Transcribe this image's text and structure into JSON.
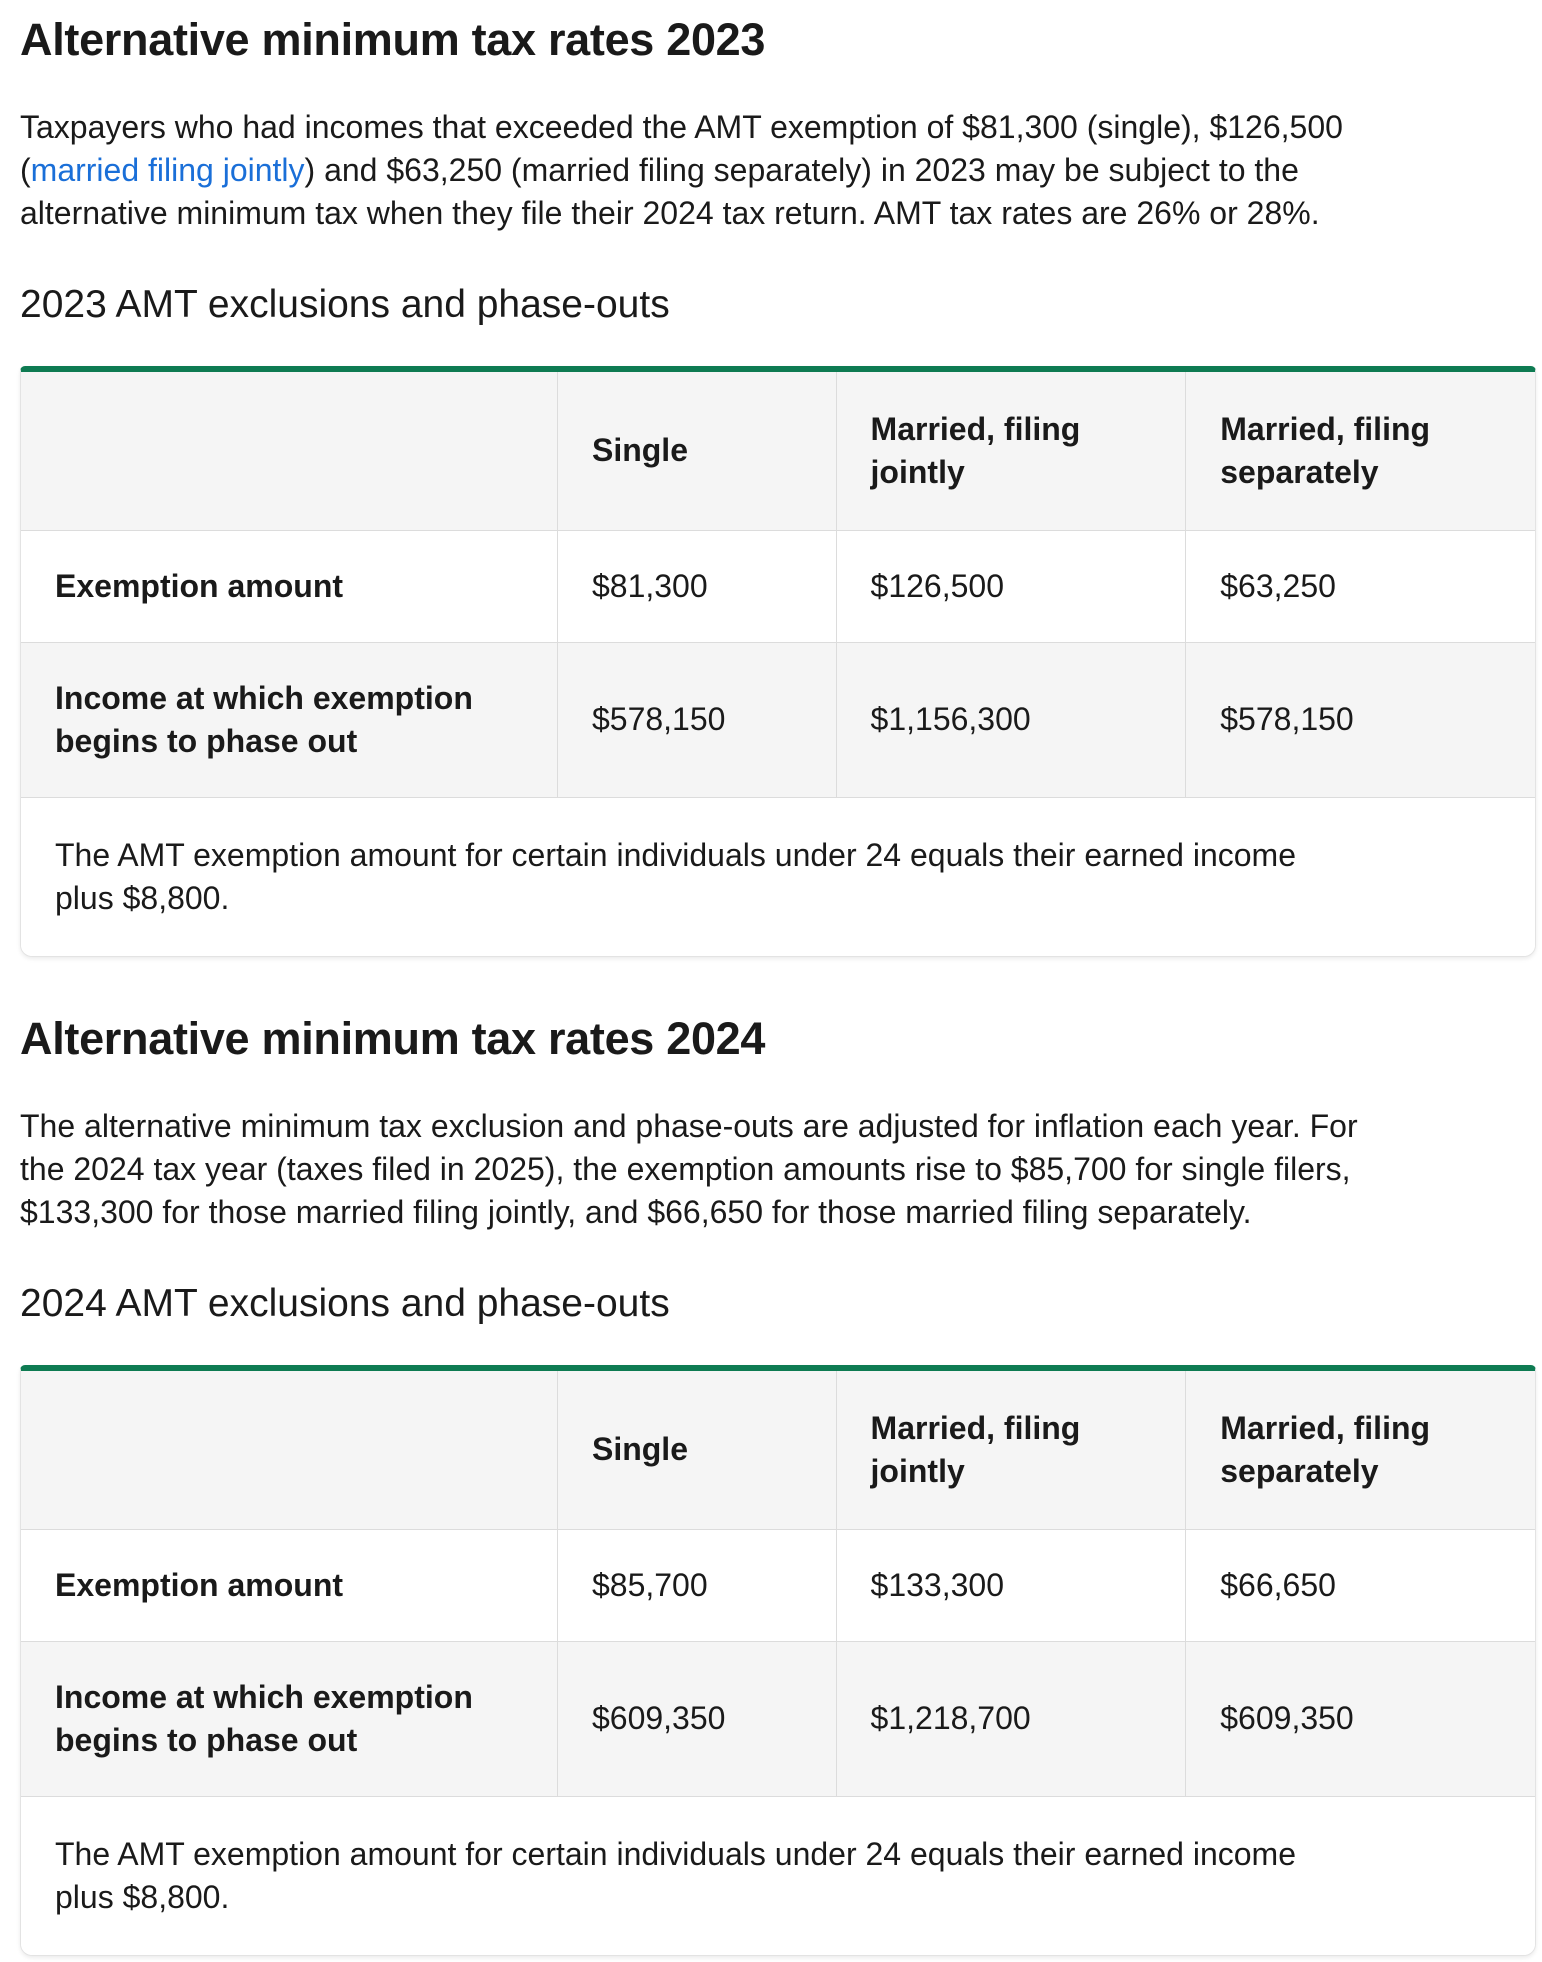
{
  "colors": {
    "background": "#ffffff",
    "text": "#1a1a1a",
    "accent_green": "#0e7b52",
    "link_blue": "#1a6fd8",
    "table_shaded_bg": "#f5f5f5",
    "table_border": "#dcdcdc"
  },
  "t2023": {
    "title": "Alternative minimum tax rates 2023",
    "intro_lines": [
      {
        "pre": "Taxpayers who had incomes that exceeded the AMT exemption of $81,300 (single), $126,500"
      },
      {
        "pre": "(",
        "link": "married filing jointly",
        "post": ") and $63,250 (married filing separately) in 2023 may be subject to the"
      },
      {
        "pre": "alternative minimum tax when they file their 2024 tax return. AMT tax rates are 26% or 28%."
      }
    ],
    "subheading": "2023 AMT exclusions and phase-outs",
    "columns": [
      "",
      "Single",
      "Married, filing jointly",
      "Married, filing separately"
    ],
    "rows": [
      {
        "label": "Exemption amount",
        "values": [
          "$81,300",
          "$126,500",
          "$63,250"
        ]
      },
      {
        "label": "Income at which exemption begins to phase out",
        "values": [
          "$578,150",
          "$1,156,300",
          "$578,150"
        ]
      }
    ],
    "footnote_lines": [
      "The AMT exemption amount for certain individuals under 24 equals their earned income",
      "plus $8,800."
    ]
  },
  "t2024": {
    "title": "Alternative minimum tax rates 2024",
    "intro_lines": [
      {
        "pre": "The alternative minimum tax exclusion and phase-outs are adjusted for inflation each year. For"
      },
      {
        "pre": "the 2024 tax year (taxes filed in 2025), the exemption amounts rise to $85,700 for single filers,"
      },
      {
        "pre": "$133,300 for those married filing jointly, and $66,650 for those married filing separately."
      }
    ],
    "subheading": "2024 AMT exclusions and phase-outs",
    "columns": [
      "",
      "Single",
      "Married, filing jointly",
      "Married, filing separately"
    ],
    "rows": [
      {
        "label": "Exemption amount",
        "values": [
          "$85,700",
          "$133,300",
          "$66,650"
        ]
      },
      {
        "label": "Income at which exemption begins to phase out",
        "values": [
          "$609,350",
          "$1,218,700",
          "$609,350"
        ]
      }
    ],
    "footnote_lines": [
      "The AMT exemption amount for certain individuals under 24 equals their earned income",
      "plus $8,800."
    ]
  }
}
